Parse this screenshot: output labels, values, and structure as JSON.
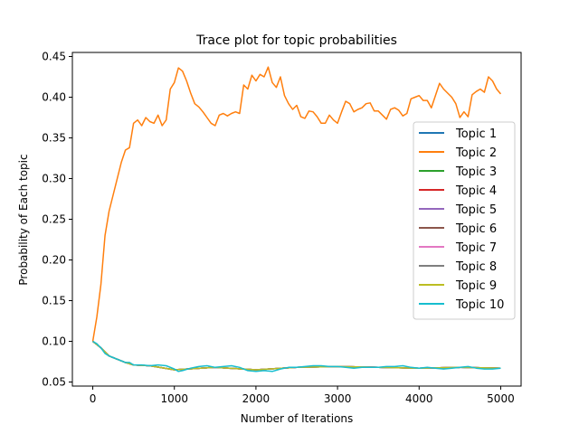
{
  "chart_data": {
    "type": "line",
    "title": "Trace plot for topic probabilities",
    "xlabel": "Number of Iterations",
    "ylabel": "Probability of Each topic",
    "xlim": [
      -250,
      5250
    ],
    "ylim": [
      0.045,
      0.455
    ],
    "xticks": [
      0,
      1000,
      2000,
      3000,
      4000,
      5000
    ],
    "xtick_labels": [
      "0",
      "1000",
      "2000",
      "3000",
      "4000",
      "5000"
    ],
    "yticks": [
      0.05,
      0.1,
      0.15,
      0.2,
      0.25,
      0.3,
      0.35,
      0.4,
      0.45
    ],
    "ytick_labels": [
      "0.05",
      "0.10",
      "0.15",
      "0.20",
      "0.25",
      "0.30",
      "0.35",
      "0.40",
      "0.45"
    ],
    "grid": false,
    "legend_position": "center-right",
    "series": [
      {
        "name": "Topic 1",
        "color": "#1f77b4",
        "x": [
          0,
          100,
          200,
          300,
          400,
          500,
          700,
          1000,
          1500,
          2000,
          2500,
          3000,
          3500,
          4000,
          4500,
          5000
        ],
        "y": [
          0.1,
          0.092,
          0.082,
          0.078,
          0.074,
          0.071,
          0.07,
          0.065,
          0.068,
          0.065,
          0.068,
          0.069,
          0.068,
          0.067,
          0.068,
          0.067
        ]
      },
      {
        "name": "Topic 2",
        "color": "#ff7f0e",
        "x": [
          0,
          50,
          100,
          150,
          200,
          250,
          300,
          350,
          400,
          450,
          500,
          550,
          600,
          650,
          700,
          750,
          800,
          850,
          900,
          950,
          1000,
          1050,
          1100,
          1150,
          1200,
          1250,
          1300,
          1350,
          1400,
          1450,
          1500,
          1550,
          1600,
          1650,
          1700,
          1750,
          1800,
          1850,
          1900,
          1950,
          2000,
          2050,
          2100,
          2150,
          2200,
          2250,
          2300,
          2350,
          2400,
          2450,
          2500,
          2550,
          2600,
          2650,
          2700,
          2750,
          2800,
          2850,
          2900,
          2950,
          3000,
          3050,
          3100,
          3150,
          3200,
          3250,
          3300,
          3350,
          3400,
          3450,
          3500,
          3550,
          3600,
          3650,
          3700,
          3750,
          3800,
          3850,
          3900,
          3950,
          4000,
          4050,
          4100,
          4150,
          4200,
          4250,
          4300,
          4350,
          4400,
          4450,
          4500,
          4550,
          4600,
          4650,
          4700,
          4750,
          4800,
          4850,
          4900,
          4950,
          5000
        ],
        "y": [
          0.1,
          0.13,
          0.17,
          0.23,
          0.26,
          0.28,
          0.3,
          0.32,
          0.335,
          0.338,
          0.368,
          0.372,
          0.365,
          0.375,
          0.37,
          0.368,
          0.378,
          0.365,
          0.372,
          0.41,
          0.418,
          0.436,
          0.432,
          0.42,
          0.405,
          0.392,
          0.388,
          0.382,
          0.375,
          0.368,
          0.365,
          0.378,
          0.38,
          0.377,
          0.38,
          0.382,
          0.38,
          0.415,
          0.41,
          0.427,
          0.42,
          0.428,
          0.425,
          0.437,
          0.418,
          0.412,
          0.425,
          0.402,
          0.392,
          0.385,
          0.39,
          0.376,
          0.374,
          0.383,
          0.382,
          0.376,
          0.368,
          0.368,
          0.378,
          0.372,
          0.368,
          0.382,
          0.395,
          0.392,
          0.382,
          0.385,
          0.387,
          0.392,
          0.393,
          0.383,
          0.383,
          0.378,
          0.373,
          0.385,
          0.387,
          0.384,
          0.377,
          0.38,
          0.398,
          0.4,
          0.402,
          0.396,
          0.396,
          0.387,
          0.402,
          0.417,
          0.41,
          0.405,
          0.4,
          0.392,
          0.375,
          0.382,
          0.376,
          0.403,
          0.407,
          0.41,
          0.406,
          0.425,
          0.42,
          0.41,
          0.404
        ]
      },
      {
        "name": "Topic 3",
        "color": "#2ca02c",
        "x": [
          0,
          100,
          200,
          300,
          400,
          500,
          700,
          1000,
          1500,
          2000,
          2500,
          3000,
          3500,
          4000,
          4500,
          5000
        ],
        "y": [
          0.1,
          0.092,
          0.082,
          0.078,
          0.074,
          0.071,
          0.07,
          0.065,
          0.068,
          0.065,
          0.068,
          0.069,
          0.068,
          0.067,
          0.068,
          0.067
        ]
      },
      {
        "name": "Topic 4",
        "color": "#d62728",
        "x": [
          0,
          100,
          200,
          300,
          400,
          500,
          700,
          1000,
          1500,
          2000,
          2500,
          3000,
          3500,
          4000,
          4500,
          5000
        ],
        "y": [
          0.1,
          0.092,
          0.082,
          0.078,
          0.074,
          0.071,
          0.07,
          0.065,
          0.068,
          0.065,
          0.068,
          0.069,
          0.068,
          0.067,
          0.068,
          0.067
        ]
      },
      {
        "name": "Topic 5",
        "color": "#9467bd",
        "x": [
          0,
          100,
          200,
          300,
          400,
          500,
          700,
          1000,
          1500,
          2000,
          2500,
          3000,
          3500,
          4000,
          4500,
          5000
        ],
        "y": [
          0.1,
          0.092,
          0.082,
          0.078,
          0.074,
          0.071,
          0.07,
          0.065,
          0.068,
          0.065,
          0.068,
          0.069,
          0.068,
          0.067,
          0.068,
          0.067
        ]
      },
      {
        "name": "Topic 6",
        "color": "#8c564b",
        "x": [
          0,
          100,
          200,
          300,
          400,
          500,
          700,
          1000,
          1500,
          2000,
          2500,
          3000,
          3500,
          4000,
          4500,
          5000
        ],
        "y": [
          0.1,
          0.092,
          0.082,
          0.078,
          0.074,
          0.071,
          0.07,
          0.065,
          0.068,
          0.065,
          0.068,
          0.069,
          0.068,
          0.067,
          0.068,
          0.067
        ]
      },
      {
        "name": "Topic 7",
        "color": "#e377c2",
        "x": [
          0,
          100,
          200,
          300,
          400,
          500,
          700,
          1000,
          1500,
          2000,
          2500,
          3000,
          3500,
          4000,
          4500,
          5000
        ],
        "y": [
          0.1,
          0.092,
          0.082,
          0.078,
          0.074,
          0.071,
          0.07,
          0.065,
          0.068,
          0.065,
          0.068,
          0.069,
          0.068,
          0.067,
          0.068,
          0.067
        ]
      },
      {
        "name": "Topic 8",
        "color": "#7f7f7f",
        "x": [
          0,
          100,
          200,
          300,
          400,
          500,
          700,
          1000,
          1500,
          2000,
          2500,
          3000,
          3500,
          4000,
          4500,
          5000
        ],
        "y": [
          0.1,
          0.092,
          0.082,
          0.078,
          0.074,
          0.071,
          0.07,
          0.065,
          0.068,
          0.065,
          0.068,
          0.069,
          0.068,
          0.067,
          0.068,
          0.067
        ]
      },
      {
        "name": "Topic 9",
        "color": "#bcbd22",
        "x": [
          0,
          100,
          200,
          300,
          400,
          500,
          700,
          1000,
          1500,
          2000,
          2500,
          3000,
          3500,
          4000,
          4500,
          5000
        ],
        "y": [
          0.1,
          0.092,
          0.082,
          0.078,
          0.074,
          0.071,
          0.07,
          0.065,
          0.068,
          0.065,
          0.068,
          0.069,
          0.068,
          0.067,
          0.068,
          0.067
        ]
      },
      {
        "name": "Topic 10",
        "color": "#17becf",
        "x": [
          0,
          50,
          100,
          150,
          200,
          250,
          300,
          350,
          400,
          450,
          500,
          600,
          700,
          800,
          900,
          1000,
          1050,
          1100,
          1200,
          1300,
          1400,
          1500,
          1600,
          1700,
          1800,
          1900,
          2000,
          2100,
          2200,
          2300,
          2400,
          2500,
          2600,
          2700,
          2800,
          2900,
          3000,
          3100,
          3200,
          3300,
          3400,
          3500,
          3600,
          3700,
          3800,
          3900,
          4000,
          4100,
          4200,
          4300,
          4400,
          4500,
          4600,
          4700,
          4800,
          4900,
          5000
        ],
        "y": [
          0.1,
          0.097,
          0.092,
          0.085,
          0.082,
          0.08,
          0.078,
          0.076,
          0.074,
          0.074,
          0.071,
          0.071,
          0.07,
          0.071,
          0.07,
          0.066,
          0.063,
          0.064,
          0.067,
          0.069,
          0.07,
          0.068,
          0.069,
          0.07,
          0.068,
          0.064,
          0.063,
          0.064,
          0.063,
          0.066,
          0.068,
          0.068,
          0.069,
          0.07,
          0.07,
          0.069,
          0.069,
          0.068,
          0.067,
          0.068,
          0.068,
          0.068,
          0.069,
          0.069,
          0.07,
          0.068,
          0.067,
          0.068,
          0.067,
          0.066,
          0.067,
          0.068,
          0.069,
          0.067,
          0.066,
          0.066,
          0.067
        ]
      }
    ]
  }
}
